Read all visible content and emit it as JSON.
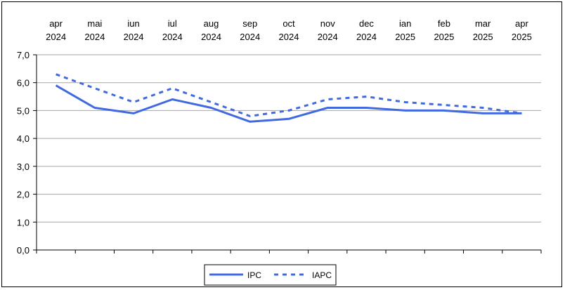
{
  "chart_data": {
    "type": "line",
    "categories": [
      [
        "apr",
        "2024"
      ],
      [
        "mai",
        "2024"
      ],
      [
        "iun",
        "2024"
      ],
      [
        "iul",
        "2024"
      ],
      [
        "aug",
        "2024"
      ],
      [
        "sep",
        "2024"
      ],
      [
        "oct",
        "2024"
      ],
      [
        "nov",
        "2024"
      ],
      [
        "dec",
        "2024"
      ],
      [
        "ian",
        "2025"
      ],
      [
        "feb",
        "2025"
      ],
      [
        "mar",
        "2025"
      ],
      [
        "apr",
        "2025"
      ]
    ],
    "series": [
      {
        "name": "IPC",
        "style": "solid",
        "color": "#4169e1",
        "values": [
          5.9,
          5.1,
          4.9,
          5.4,
          5.1,
          4.6,
          4.7,
          5.1,
          5.1,
          5.0,
          5.0,
          4.9,
          4.9
        ]
      },
      {
        "name": "IAPC",
        "style": "dotted",
        "color": "#4169e1",
        "values": [
          6.3,
          5.8,
          5.3,
          5.8,
          5.3,
          4.8,
          5.0,
          5.4,
          5.5,
          5.3,
          5.2,
          5.1,
          4.9
        ]
      }
    ],
    "yticks": [
      "0,0",
      "1,0",
      "2,0",
      "3,0",
      "4,0",
      "5,0",
      "6,0",
      "7,0"
    ],
    "ylim": [
      0,
      7
    ],
    "grid": true,
    "legend_position": "bottom-center"
  }
}
